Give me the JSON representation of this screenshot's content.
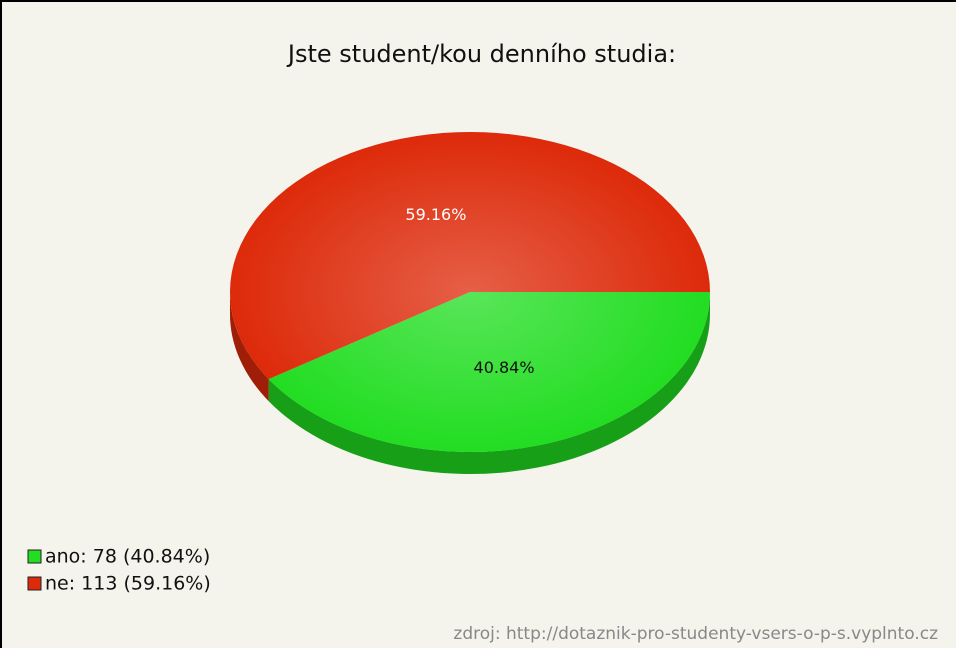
{
  "chart_data": {
    "type": "pie",
    "title": "Jste student/kou denního studia:",
    "categories": [
      "ano",
      "ne"
    ],
    "values": [
      40.84,
      59.16
    ],
    "value_labels": [
      "40.84%",
      "59.16%"
    ],
    "colors": [
      "#22dd22",
      "#dd2a0a"
    ],
    "legend": [
      "ano: 78 (40.84%)",
      "ne: 113 (59.16%)"
    ],
    "source": "zdroj: http://dotaznik-pro-studenty-vsers-o-p-s.vyplnto.cz"
  }
}
